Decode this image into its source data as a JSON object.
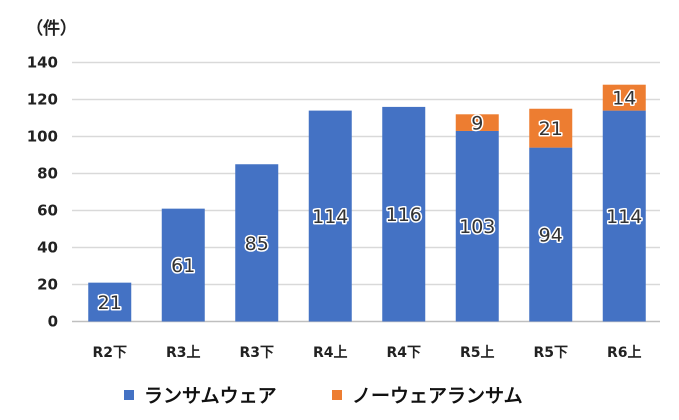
{
  "chart_data": {
    "type": "bar",
    "stacked": true,
    "unit_label": "（件）",
    "categories": [
      "R2下",
      "R3上",
      "R3下",
      "R4上",
      "R4下",
      "R5上",
      "R5下",
      "R6上"
    ],
    "series": [
      {
        "name": "ランサムウェア",
        "color": "#4472C4",
        "values": [
          21,
          61,
          85,
          114,
          116,
          103,
          94,
          114
        ]
      },
      {
        "name": "ノーウェアランサム",
        "color": "#ED7D31",
        "values": [
          null,
          null,
          null,
          null,
          null,
          9,
          21,
          14
        ]
      }
    ],
    "ylim": [
      0,
      140
    ],
    "yticks": [
      0,
      20,
      40,
      60,
      80,
      100,
      120,
      140
    ],
    "grid": true,
    "legend": "bottom",
    "data_labels": true
  }
}
